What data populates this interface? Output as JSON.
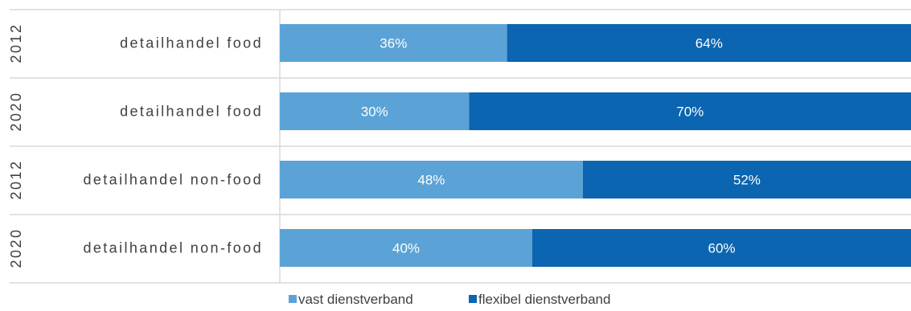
{
  "chart_data": {
    "type": "bar",
    "orientation": "horizontal",
    "stacked": "percent",
    "rows": [
      {
        "year": "2012",
        "category": "detailhandel food"
      },
      {
        "year": "2020",
        "category": "detailhandel food"
      },
      {
        "year": "2012",
        "category": "detailhandel non-food"
      },
      {
        "year": "2020",
        "category": "detailhandel non-food"
      }
    ],
    "series": [
      {
        "name": "vast dienstverband",
        "color": "#5BA3D6",
        "values": [
          36,
          30,
          48,
          40
        ],
        "labels": [
          "36%",
          "30%",
          "48%",
          "40%"
        ]
      },
      {
        "name": "flexibel dienstverband",
        "color": "#0B65B0",
        "values": [
          64,
          70,
          52,
          60
        ],
        "labels": [
          "64%",
          "70%",
          "52%",
          "60%"
        ]
      }
    ],
    "xlim": [
      0,
      100
    ],
    "legend_position": "bottom",
    "grid": false
  }
}
